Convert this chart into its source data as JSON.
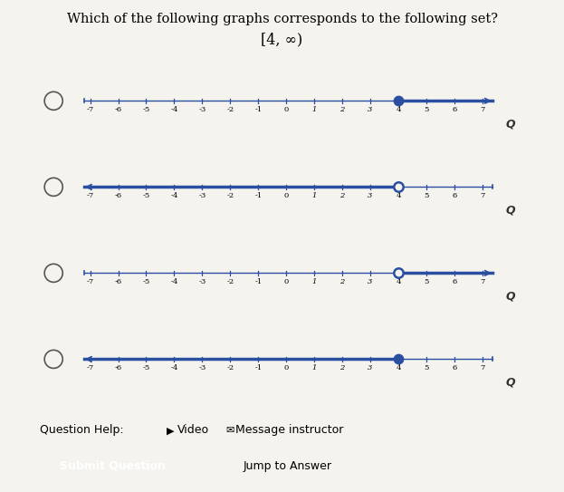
{
  "title_line1": "Which of the following graphs corresponds to the following set?",
  "title_line2": "[4, ∞)",
  "background_color": "#f5f3ee",
  "line_color": "#2b4fa0",
  "number_lines": [
    {
      "dot_at": 4,
      "dot_filled": true,
      "arrow_direction": "right"
    },
    {
      "dot_at": 4,
      "dot_filled": false,
      "arrow_direction": "left"
    },
    {
      "dot_at": 4,
      "dot_filled": false,
      "arrow_direction": "right"
    },
    {
      "dot_at": 4,
      "dot_filled": true,
      "arrow_direction": "left"
    }
  ],
  "xmin": -7,
  "xmax": 7,
  "tick_positions": [
    -7,
    -6,
    -5,
    -4,
    -3,
    -2,
    -1,
    0,
    1,
    2,
    3,
    4,
    5,
    6,
    7
  ],
  "italic_ticks": [
    1,
    2,
    3
  ],
  "figwidth": 6.23,
  "figheight": 5.43,
  "dpi": 100,
  "button_color": "#1a6fc4",
  "button_text": "Submit Question",
  "jump_text": "Jump to Answer",
  "question_help_text": "Question Help:",
  "video_text": "Video",
  "message_text": "Message instructor"
}
